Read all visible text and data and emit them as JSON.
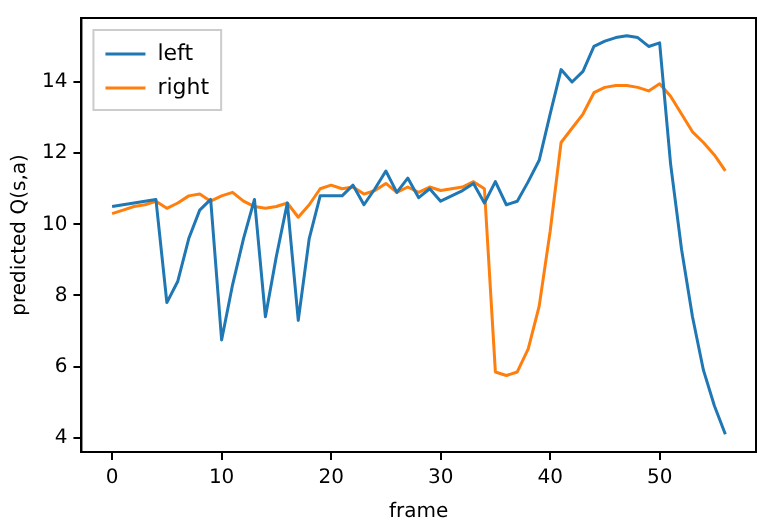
{
  "chart_data": {
    "type": "line",
    "xlabel": "frame",
    "ylabel": "predicted Q(s,a)",
    "x": [
      0,
      1,
      2,
      3,
      4,
      5,
      6,
      7,
      8,
      9,
      10,
      11,
      12,
      13,
      14,
      15,
      16,
      17,
      18,
      19,
      20,
      21,
      22,
      23,
      24,
      25,
      26,
      27,
      28,
      29,
      30,
      31,
      32,
      33,
      34,
      35,
      36,
      37,
      38,
      39,
      40,
      41,
      42,
      43,
      44,
      45,
      46,
      47,
      48,
      49,
      50,
      51,
      52,
      53,
      54,
      55,
      56
    ],
    "series": [
      {
        "name": "left",
        "color": "#1f77b4",
        "values": [
          10.5,
          10.55,
          10.6,
          10.65,
          10.7,
          7.8,
          8.4,
          9.6,
          10.4,
          10.7,
          6.75,
          8.3,
          9.6,
          10.7,
          7.4,
          9.1,
          10.6,
          7.3,
          9.6,
          10.8,
          10.8,
          10.8,
          11.1,
          10.55,
          11.0,
          11.5,
          10.9,
          11.3,
          10.75,
          11.0,
          10.65,
          10.8,
          10.95,
          11.15,
          10.6,
          11.2,
          10.55,
          10.65,
          11.2,
          11.8,
          13.1,
          14.35,
          14.0,
          14.3,
          15.0,
          15.15,
          15.25,
          15.3,
          15.25,
          15.0,
          15.1,
          11.7,
          9.3,
          7.4,
          5.9,
          4.9,
          4.1
        ]
      },
      {
        "name": "right",
        "color": "#ff7f0e",
        "values": [
          10.3,
          10.4,
          10.5,
          10.55,
          10.65,
          10.45,
          10.6,
          10.8,
          10.85,
          10.65,
          10.8,
          10.9,
          10.65,
          10.5,
          10.45,
          10.5,
          10.6,
          10.2,
          10.55,
          11.0,
          11.1,
          11.0,
          11.05,
          10.85,
          10.95,
          11.15,
          10.9,
          11.05,
          10.9,
          11.05,
          10.95,
          11.0,
          11.05,
          11.2,
          11.0,
          5.85,
          5.75,
          5.85,
          6.5,
          7.7,
          9.8,
          12.3,
          12.7,
          13.1,
          13.7,
          13.85,
          13.9,
          13.9,
          13.85,
          13.75,
          13.95,
          13.6,
          13.1,
          12.6,
          12.3,
          11.95,
          11.5
        ]
      }
    ],
    "xlim": [
      -2.8,
      58.8
    ],
    "xticks": [
      0,
      10,
      20,
      30,
      40,
      50
    ],
    "ylim": [
      3.6,
      15.8
    ],
    "yticks": [
      4,
      6,
      8,
      10,
      12,
      14
    ],
    "grid": false,
    "legend": "top left",
    "marker": "none",
    "line_style": "solid"
  }
}
